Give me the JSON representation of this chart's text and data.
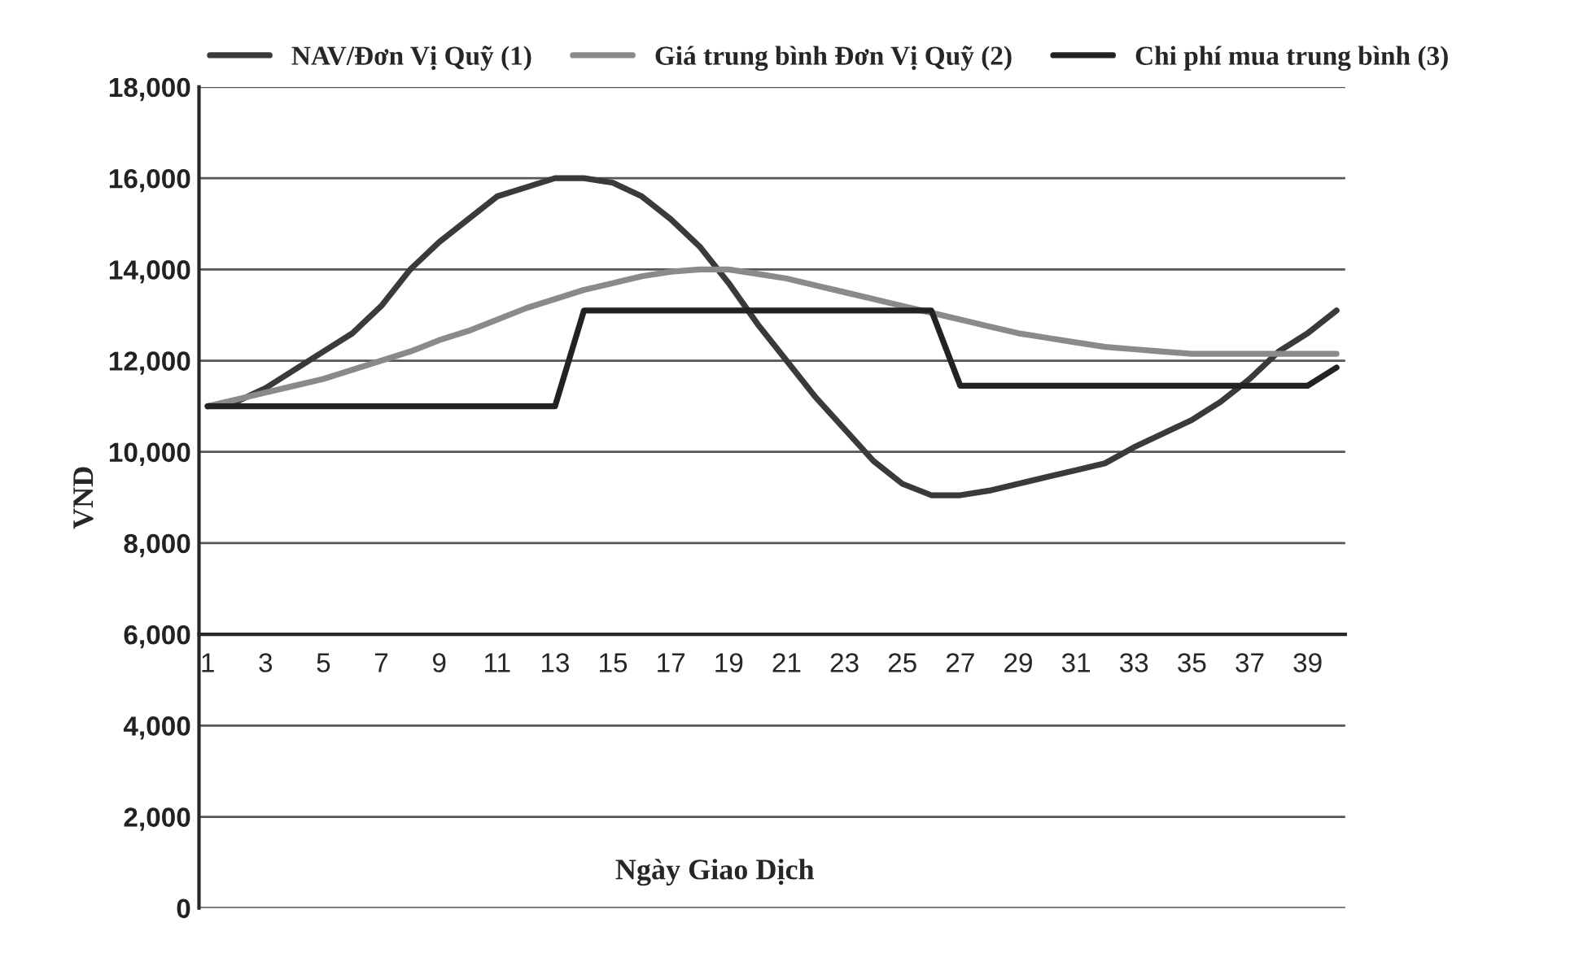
{
  "chart_data": {
    "type": "line",
    "xlabel": "Ngày Giao Dịch",
    "ylabel": "VND",
    "categories": [
      "1",
      null,
      "3",
      null,
      "5",
      null,
      "7",
      null,
      "9",
      null,
      "11",
      null,
      "13",
      null,
      "15",
      null,
      "17",
      null,
      "19",
      null,
      "21",
      null,
      "23",
      null,
      "25",
      null,
      "27",
      null,
      "29",
      null,
      "31",
      null,
      "33",
      null,
      "35",
      null,
      "37",
      null,
      "39",
      null
    ],
    "series": [
      {
        "name": "NAV/Đơn Vị Quỹ (1)",
        "color": "#3a3a3a",
        "values": [
          11000,
          11100,
          11400,
          11800,
          12200,
          12600,
          13200,
          14000,
          14600,
          15100,
          15600,
          15800,
          16000,
          16000,
          15900,
          15600,
          15100,
          14500,
          13700,
          12800,
          12000,
          11200,
          10500,
          9800,
          9300,
          9050,
          9050,
          9150,
          9300,
          9450,
          9600,
          9750,
          10100,
          10400,
          10700,
          11100,
          11600,
          12200,
          12600,
          13100
        ]
      },
      {
        "name": "Giá trung bình Đơn Vị Quỹ (2)",
        "color": "#8a8a8a",
        "values": [
          11000,
          11150,
          11300,
          11450,
          11600,
          11800,
          12000,
          12200,
          12450,
          12650,
          12900,
          13150,
          13350,
          13550,
          13700,
          13850,
          13950,
          14000,
          14000,
          13900,
          13800,
          13650,
          13500,
          13350,
          13200,
          13050,
          12900,
          12750,
          12600,
          12500,
          12400,
          12300,
          12250,
          12200,
          12150,
          12150,
          12150,
          12150,
          12150,
          12150
        ]
      },
      {
        "name": "Chi phí mua trung bình (3)",
        "color": "#222222",
        "values": [
          11000,
          11000,
          11000,
          11000,
          11000,
          11000,
          11000,
          11000,
          11000,
          11000,
          11000,
          11000,
          11000,
          13100,
          13100,
          13100,
          13100,
          13100,
          13100,
          13100,
          13100,
          13100,
          13100,
          13100,
          13100,
          13100,
          11450,
          11450,
          11450,
          11450,
          11450,
          11450,
          11450,
          11450,
          11450,
          11450,
          11450,
          11450,
          11450,
          11850
        ]
      }
    ],
    "ylim": [
      0,
      18000
    ],
    "yticks": [
      {
        "value": 0,
        "label": "0"
      },
      {
        "value": 2000,
        "label": "2,000"
      },
      {
        "value": 4000,
        "label": "4,000"
      },
      {
        "value": 6000,
        "label": "6,000"
      },
      {
        "value": 8000,
        "label": "8,000"
      },
      {
        "value": 10000,
        "label": "10,000"
      },
      {
        "value": 12000,
        "label": "12,000"
      },
      {
        "value": 14000,
        "label": "14,000"
      },
      {
        "value": 16000,
        "label": "16,000"
      },
      {
        "value": 18000,
        "label": "18,000"
      }
    ],
    "grid": "y",
    "legend": "top",
    "marker": "none",
    "line_style": "solid"
  }
}
